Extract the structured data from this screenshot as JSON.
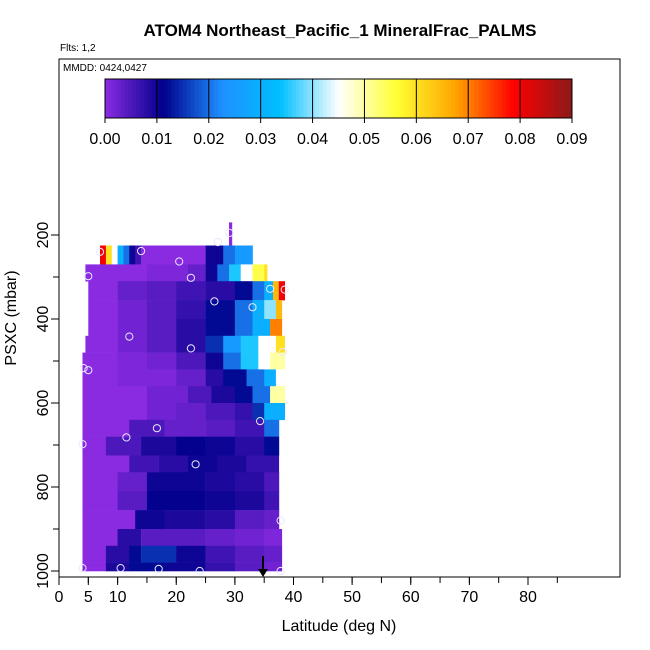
{
  "chart_data": {
    "type": "heatmap",
    "title": "ATOM4 Northeast_Pacific_1 MineralFrac_PALMS",
    "subtitle_flights": "Flts: 1,2",
    "subtitle_dates": "MMDD: 0424,0427",
    "xlabel": "Latitude (deg N)",
    "ylabel": "PSXC (mbar)",
    "xlim": [
      0,
      85
    ],
    "ylim": [
      1000,
      0
    ],
    "x_ticks": [
      0,
      5,
      10,
      20,
      30,
      40,
      50,
      60,
      70,
      80
    ],
    "y_ticks": [
      200,
      400,
      600,
      800,
      1000
    ],
    "colorbar": {
      "min": 0,
      "max": 0.09,
      "ticks": [
        "0.00",
        "0.01",
        "0.02",
        "0.03",
        "0.04",
        "0.05",
        "0.06",
        "0.07",
        "0.08",
        "0.09"
      ],
      "colors": [
        "#8a2be2",
        "#00008b",
        "#1e90ff",
        "#00bfff",
        "#ffffff",
        "#ffff33",
        "#ffa500",
        "#ff0000",
        "#8b1a1a"
      ]
    },
    "grid": false,
    "arrow_latitude": 34.8,
    "rows": [
      {
        "p_top": 170,
        "p_bot": 230,
        "segments": [
          [
            29,
            29.5,
            0.0
          ]
        ]
      },
      {
        "p_top": 225,
        "p_bot": 270,
        "segments": [
          [
            7,
            8,
            0.08
          ],
          [
            8,
            9,
            0.06
          ],
          [
            9,
            10,
            0.045
          ],
          [
            10,
            11,
            0.03
          ],
          [
            11,
            12,
            0.02
          ],
          [
            12,
            13,
            0.01
          ],
          [
            13,
            14,
            0.006
          ],
          [
            14,
            20,
            0.0
          ],
          [
            20,
            25,
            0.0
          ],
          [
            25,
            28,
            0.01
          ],
          [
            28,
            30,
            0.02
          ],
          [
            30,
            33,
            0.025
          ]
        ]
      },
      {
        "p_top": 270,
        "p_bot": 310,
        "segments": [
          [
            4.5,
            15,
            0.0
          ],
          [
            15,
            22,
            0.001
          ],
          [
            22,
            25,
            0.003
          ],
          [
            25,
            27,
            0.01
          ],
          [
            27,
            29,
            0.02
          ],
          [
            29,
            31,
            0.035
          ],
          [
            31,
            33,
            0.045
          ],
          [
            33,
            35,
            0.055
          ],
          [
            35,
            35.5,
            0.06
          ]
        ]
      },
      {
        "p_top": 310,
        "p_bot": 355,
        "segments": [
          [
            5,
            10,
            0.0
          ],
          [
            10,
            15,
            0.003
          ],
          [
            15,
            20,
            0.004
          ],
          [
            20,
            25,
            0.006
          ],
          [
            25,
            30,
            0.008
          ],
          [
            30,
            33,
            0.012
          ],
          [
            33,
            35,
            0.02
          ],
          [
            35,
            36.5,
            0.03
          ],
          [
            36.5,
            37.5,
            0.065
          ],
          [
            37.5,
            38.5,
            0.08
          ]
        ]
      },
      {
        "p_top": 355,
        "p_bot": 400,
        "segments": [
          [
            5,
            10,
            0.0
          ],
          [
            10,
            15,
            0.002
          ],
          [
            15,
            20,
            0.004
          ],
          [
            20,
            25,
            0.007
          ],
          [
            25,
            30,
            0.012
          ],
          [
            30,
            33,
            0.02
          ],
          [
            33,
            35,
            0.03
          ],
          [
            35,
            37,
            0.04
          ],
          [
            37,
            38,
            0.065
          ]
        ]
      },
      {
        "p_top": 400,
        "p_bot": 440,
        "segments": [
          [
            5,
            10,
            0.0
          ],
          [
            10,
            15,
            0.002
          ],
          [
            15,
            20,
            0.004
          ],
          [
            20,
            25,
            0.008
          ],
          [
            25,
            30,
            0.012
          ],
          [
            30,
            33,
            0.02
          ],
          [
            33,
            36,
            0.03
          ],
          [
            36,
            38,
            0.07
          ]
        ]
      },
      {
        "p_top": 440,
        "p_bot": 480,
        "segments": [
          [
            4.5,
            10,
            0.0
          ],
          [
            10,
            15,
            0.002
          ],
          [
            15,
            20,
            0.004
          ],
          [
            20,
            25,
            0.008
          ],
          [
            25,
            28,
            0.015
          ],
          [
            28,
            31,
            0.025
          ],
          [
            31,
            34,
            0.035
          ],
          [
            34,
            37,
            0.045
          ],
          [
            37,
            38.5,
            0.06
          ]
        ]
      },
      {
        "p_top": 480,
        "p_bot": 520,
        "segments": [
          [
            4,
            10,
            0.0
          ],
          [
            10,
            15,
            0.001
          ],
          [
            15,
            20,
            0.002
          ],
          [
            20,
            25,
            0.005
          ],
          [
            25,
            28,
            0.01
          ],
          [
            28,
            31,
            0.02
          ],
          [
            31,
            34,
            0.035
          ],
          [
            34,
            36,
            0.045
          ],
          [
            36,
            38.5,
            0.05
          ]
        ]
      },
      {
        "p_top": 520,
        "p_bot": 560,
        "segments": [
          [
            4,
            10,
            0.0
          ],
          [
            10,
            20,
            0.001
          ],
          [
            20,
            25,
            0.003
          ],
          [
            25,
            28,
            0.008
          ],
          [
            28,
            32,
            0.012
          ],
          [
            32,
            35,
            0.02
          ],
          [
            35,
            37,
            0.03
          ],
          [
            37,
            38.5,
            0.045
          ]
        ]
      },
      {
        "p_top": 560,
        "p_bot": 600,
        "segments": [
          [
            4,
            15,
            0.0
          ],
          [
            15,
            22,
            0.002
          ],
          [
            22,
            26,
            0.005
          ],
          [
            26,
            30,
            0.009
          ],
          [
            30,
            33,
            0.012
          ],
          [
            33,
            36,
            0.02
          ],
          [
            36,
            38.5,
            0.05
          ]
        ]
      },
      {
        "p_top": 600,
        "p_bot": 640,
        "segments": [
          [
            4,
            15,
            0.0
          ],
          [
            15,
            20,
            0.002
          ],
          [
            20,
            25,
            0.003
          ],
          [
            25,
            30,
            0.005
          ],
          [
            30,
            33,
            0.007
          ],
          [
            33,
            35,
            0.015
          ],
          [
            35,
            38.5,
            0.03
          ]
        ]
      },
      {
        "p_top": 640,
        "p_bot": 680,
        "segments": [
          [
            4,
            12,
            0.0
          ],
          [
            12,
            18,
            0.005
          ],
          [
            18,
            25,
            0.003
          ],
          [
            25,
            30,
            0.004
          ],
          [
            30,
            35,
            0.006
          ],
          [
            35,
            37.5,
            0.02
          ]
        ]
      },
      {
        "p_top": 680,
        "p_bot": 725,
        "segments": [
          [
            4,
            8,
            0.0
          ],
          [
            8,
            14,
            0.005
          ],
          [
            14,
            20,
            0.009
          ],
          [
            20,
            25,
            0.011
          ],
          [
            25,
            30,
            0.01
          ],
          [
            30,
            35,
            0.008
          ],
          [
            35,
            37.5,
            0.012
          ]
        ]
      },
      {
        "p_top": 725,
        "p_bot": 765,
        "segments": [
          [
            4,
            12,
            0.0
          ],
          [
            12,
            17,
            0.006
          ],
          [
            17,
            22,
            0.008
          ],
          [
            22,
            27,
            0.01
          ],
          [
            27,
            32,
            0.009
          ],
          [
            32,
            37.5,
            0.007
          ]
        ]
      },
      {
        "p_top": 765,
        "p_bot": 810,
        "segments": [
          [
            4,
            10,
            0.0
          ],
          [
            10,
            15,
            0.003
          ],
          [
            15,
            25,
            0.01
          ],
          [
            25,
            30,
            0.009
          ],
          [
            30,
            35,
            0.008
          ],
          [
            35,
            37.5,
            0.005
          ]
        ]
      },
      {
        "p_top": 810,
        "p_bot": 855,
        "segments": [
          [
            4,
            10,
            0.0
          ],
          [
            10,
            15,
            0.004
          ],
          [
            15,
            25,
            0.011
          ],
          [
            25,
            30,
            0.01
          ],
          [
            30,
            35,
            0.009
          ],
          [
            35,
            37.5,
            0.006
          ]
        ]
      },
      {
        "p_top": 855,
        "p_bot": 900,
        "segments": [
          [
            4,
            13,
            0.0
          ],
          [
            13,
            18,
            0.01
          ],
          [
            18,
            25,
            0.009
          ],
          [
            25,
            30,
            0.008
          ],
          [
            30,
            35,
            0.004
          ],
          [
            35,
            37.5,
            0.003
          ]
        ]
      },
      {
        "p_top": 900,
        "p_bot": 940,
        "segments": [
          [
            4,
            10,
            0.0
          ],
          [
            10,
            14,
            0.008
          ],
          [
            14,
            25,
            0.004
          ],
          [
            25,
            30,
            0.003
          ],
          [
            30,
            35,
            0.002
          ],
          [
            35,
            38,
            0.001
          ]
        ]
      },
      {
        "p_top": 940,
        "p_bot": 980,
        "segments": [
          [
            4,
            8,
            0.0
          ],
          [
            8,
            12,
            0.008
          ],
          [
            12,
            14,
            0.012
          ],
          [
            14,
            20,
            0.015
          ],
          [
            20,
            25,
            0.01
          ],
          [
            25,
            30,
            0.006
          ],
          [
            30,
            35,
            0.004
          ],
          [
            35,
            38,
            0.003
          ]
        ]
      },
      {
        "p_top": 980,
        "p_bot": 1000,
        "segments": [
          [
            4,
            8,
            0.0
          ],
          [
            8,
            12,
            0.009
          ],
          [
            12,
            18,
            0.012
          ],
          [
            18,
            25,
            0.01
          ],
          [
            25,
            30,
            0.007
          ],
          [
            30,
            35,
            0.004
          ],
          [
            35,
            38,
            0.002
          ]
        ]
      }
    ],
    "points": [
      {
        "lat": 29.1,
        "p": 195
      },
      {
        "lat": 27.1,
        "p": 217
      },
      {
        "lat": 7.0,
        "p": 240
      },
      {
        "lat": 14.0,
        "p": 238
      },
      {
        "lat": 20.5,
        "p": 263
      },
      {
        "lat": 5.0,
        "p": 298
      },
      {
        "lat": 22.5,
        "p": 302
      },
      {
        "lat": 36.0,
        "p": 328
      },
      {
        "lat": 38.5,
        "p": 330
      },
      {
        "lat": 26.5,
        "p": 358
      },
      {
        "lat": 33.0,
        "p": 372
      },
      {
        "lat": 12.0,
        "p": 442
      },
      {
        "lat": 22.5,
        "p": 470
      },
      {
        "lat": 38.2,
        "p": 478
      },
      {
        "lat": 4.2,
        "p": 517
      },
      {
        "lat": 5.0,
        "p": 522
      },
      {
        "lat": 34.3,
        "p": 643
      },
      {
        "lat": 16.7,
        "p": 660
      },
      {
        "lat": 11.5,
        "p": 682
      },
      {
        "lat": 4.0,
        "p": 698
      },
      {
        "lat": 23.3,
        "p": 746
      },
      {
        "lat": 37.8,
        "p": 880
      },
      {
        "lat": 4.0,
        "p": 993
      },
      {
        "lat": 10.5,
        "p": 993
      },
      {
        "lat": 17.0,
        "p": 995
      },
      {
        "lat": 24.0,
        "p": 1000
      },
      {
        "lat": 37.8,
        "p": 1000
      }
    ]
  }
}
